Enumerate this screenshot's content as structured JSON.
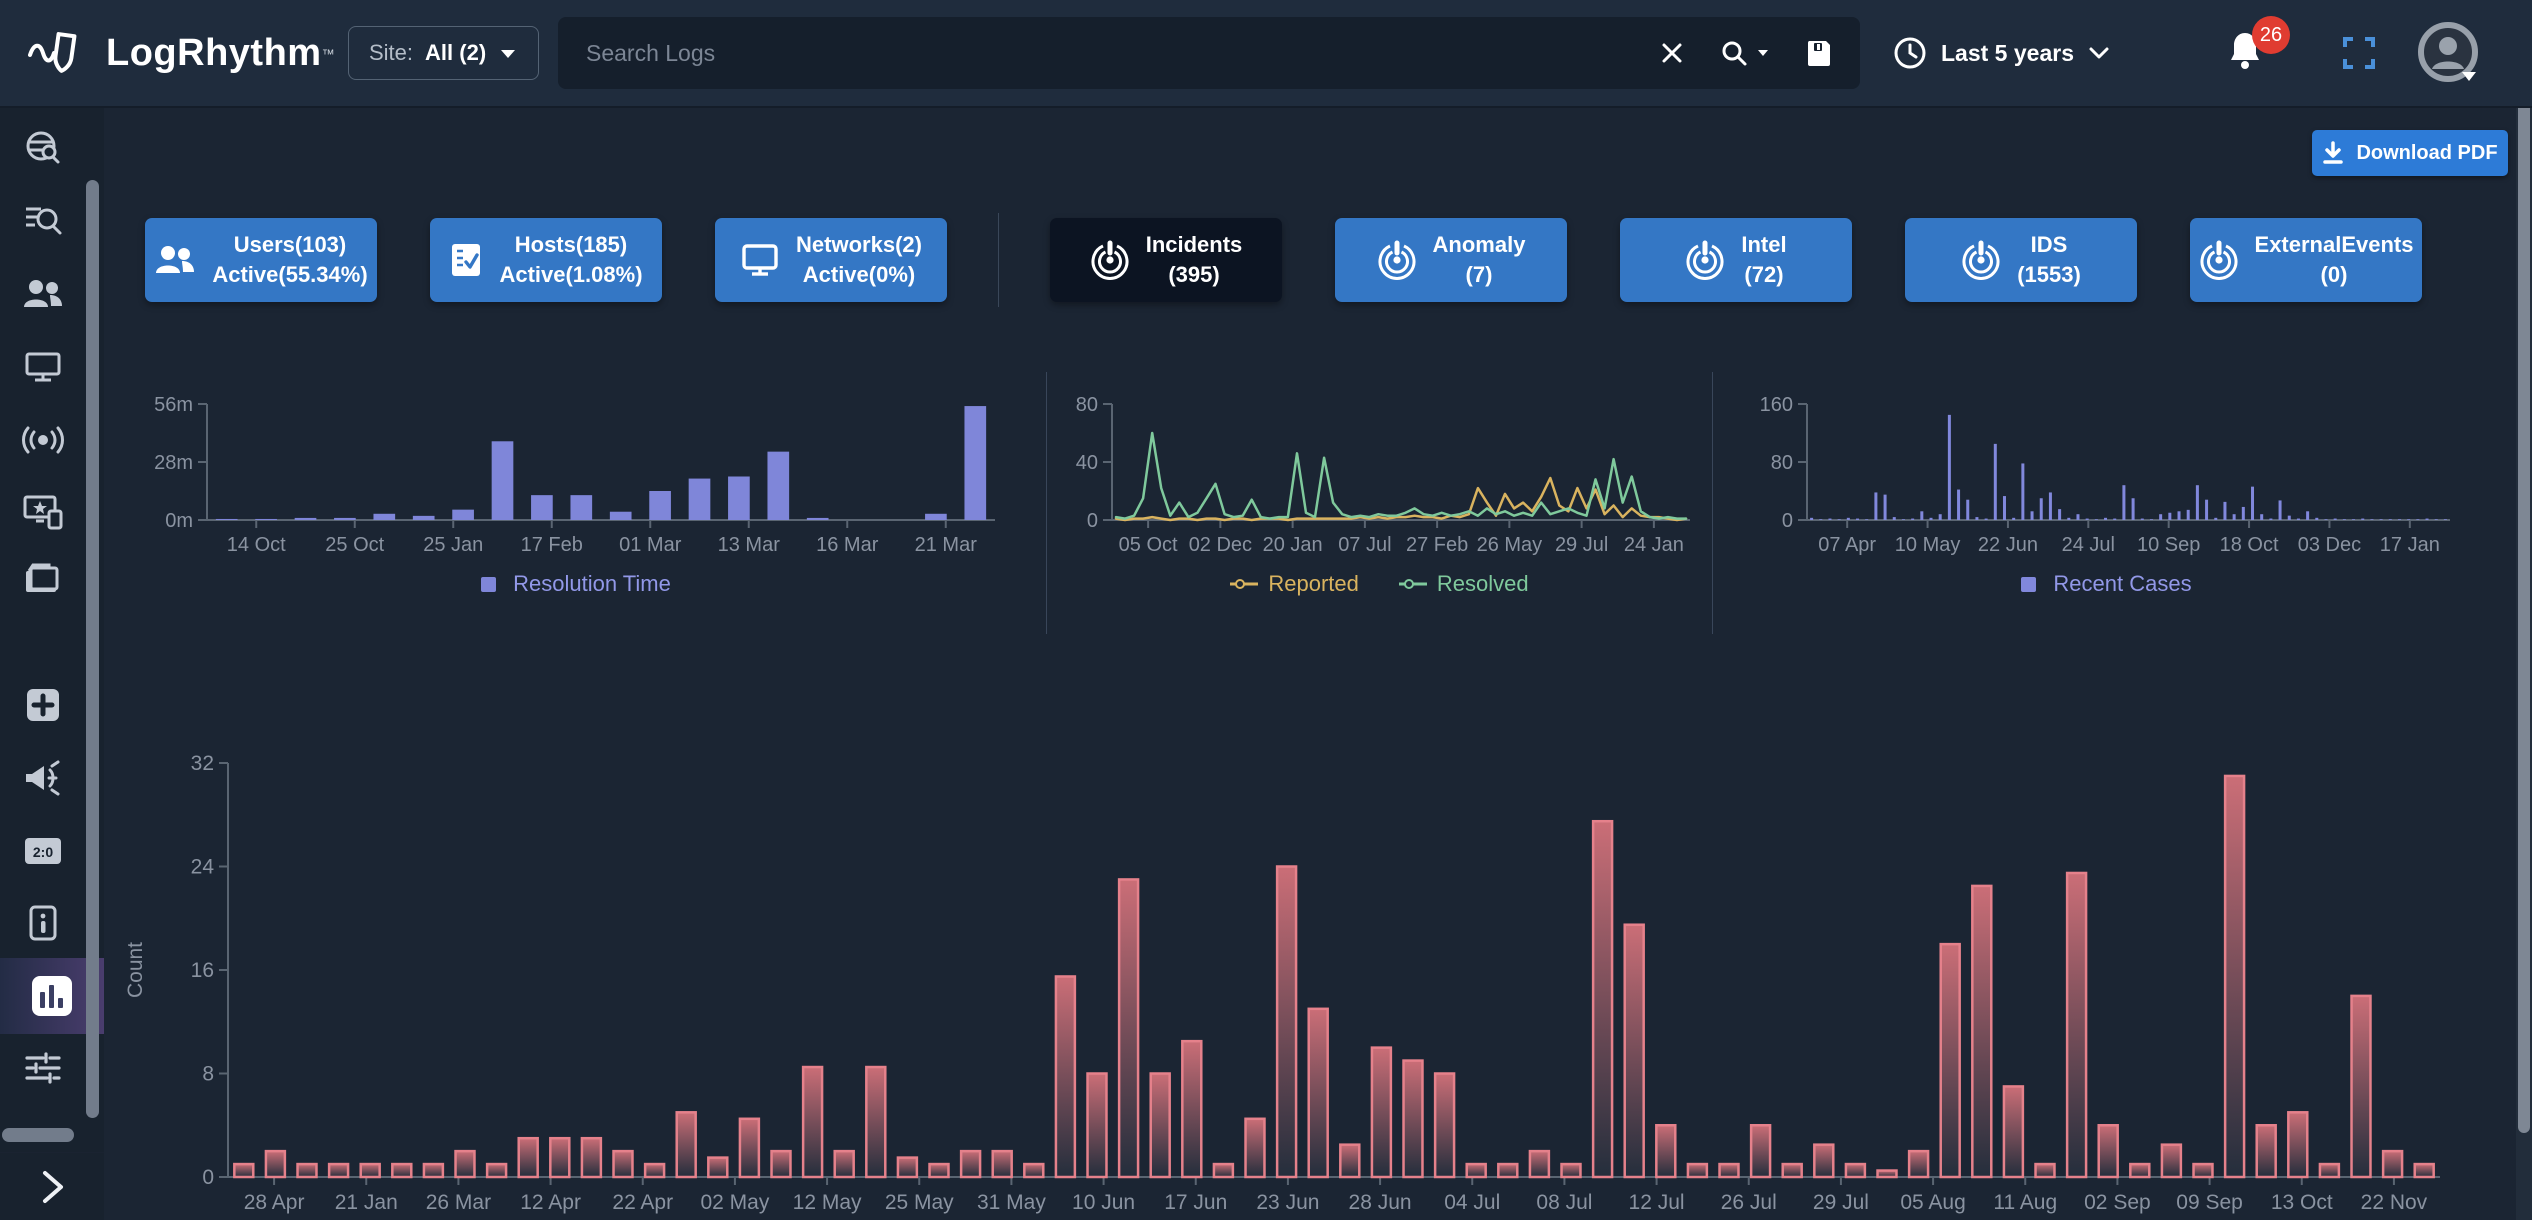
{
  "topbar": {
    "logo_text": "LogRhythm",
    "logo_tm": "™",
    "site_label": "Site:",
    "site_value": "All (2)",
    "search_placeholder": "Search Logs",
    "time_range": "Last 5 years",
    "notification_count": "26"
  },
  "sidebar": {
    "icons": [
      "globe-search",
      "search-list",
      "users",
      "monitor",
      "broadcast",
      "device-star",
      "briefcase",
      "plus-square",
      "megaphone",
      "scoreboard",
      "info-card",
      "bar-chart",
      "sliders",
      "expand-chevron"
    ],
    "active_item": "bar-chart"
  },
  "toolbar": {
    "download_pdf_label": "Download PDF"
  },
  "cards": {
    "assets": [
      {
        "title": "Users(103)",
        "subtitle": "Active(55.34%)",
        "icon": "users-icon"
      },
      {
        "title": "Hosts(185)",
        "subtitle": "Active(1.08%)",
        "icon": "host-checklist-icon"
      },
      {
        "title": "Networks(2)",
        "subtitle": "Active(0%)",
        "icon": "network-monitor-icon"
      }
    ],
    "events": [
      {
        "title": "Incidents",
        "subtitle": "(395)",
        "icon": "pulse-icon",
        "selected": true
      },
      {
        "title": "Anomaly",
        "subtitle": "(7)",
        "icon": "pulse-icon",
        "selected": false
      },
      {
        "title": "Intel",
        "subtitle": "(72)",
        "icon": "pulse-icon",
        "selected": false
      },
      {
        "title": "IDS",
        "subtitle": "(1553)",
        "icon": "pulse-icon",
        "selected": false
      },
      {
        "title": "ExternalEvents",
        "subtitle": "(0)",
        "icon": "pulse-icon",
        "selected": false
      }
    ]
  },
  "chart_data": [
    {
      "id": "resolution",
      "type": "bar",
      "title": "Resolution Time",
      "color": "#7f86d9",
      "ymax": 56,
      "y_ticks": [
        "0m",
        "28m",
        "56m"
      ],
      "x_labels": [
        "14 Oct",
        "25 Oct",
        "25 Jan",
        "17 Feb",
        "01 Mar",
        "13 Mar",
        "16 Mar",
        "21 Mar"
      ],
      "values": [
        0.5,
        0.5,
        1,
        1,
        3,
        2,
        5,
        38,
        12,
        12,
        4,
        14,
        20,
        21,
        33,
        1,
        0,
        0,
        3,
        55
      ],
      "unit": "minutes",
      "legend": [
        {
          "label": "Resolution Time",
          "color": "#7f86d9",
          "text_color": "#9298e8",
          "shape": "square"
        }
      ]
    },
    {
      "id": "incidents_over_time",
      "type": "line",
      "ymax": 80,
      "y_ticks": [
        "0",
        "40",
        "80"
      ],
      "x_labels": [
        "05 Oct",
        "02 Dec",
        "20 Jan",
        "07 Jul",
        "27 Feb",
        "26 May",
        "29 Jul",
        "24 Jan"
      ],
      "series": [
        {
          "name": "Reported",
          "color": "#d9b35f",
          "values": [
            1,
            0,
            1,
            1,
            2,
            1,
            0,
            1,
            1,
            0,
            1,
            1,
            0,
            1,
            1,
            0,
            1,
            1,
            1,
            0,
            1,
            1,
            1,
            1,
            1,
            1,
            1,
            2,
            1,
            2,
            1,
            2,
            2,
            3,
            2,
            2,
            1,
            3,
            2,
            4,
            22,
            12,
            3,
            18,
            8,
            12,
            6,
            16,
            29,
            10,
            6,
            22,
            8,
            21,
            4,
            10,
            2,
            8,
            3,
            2,
            2,
            1,
            0,
            1
          ]
        },
        {
          "name": "Resolved",
          "color": "#7fc99c",
          "values": [
            2,
            1,
            3,
            15,
            60,
            22,
            3,
            12,
            2,
            5,
            15,
            25,
            4,
            2,
            3,
            14,
            2,
            1,
            2,
            2,
            46,
            5,
            2,
            43,
            12,
            4,
            2,
            3,
            2,
            4,
            3,
            3,
            5,
            8,
            4,
            3,
            5,
            3,
            4,
            6,
            3,
            8,
            4,
            6,
            3,
            5,
            3,
            12,
            4,
            6,
            8,
            5,
            3,
            28,
            8,
            42,
            12,
            30,
            6,
            2,
            1,
            2,
            1,
            1
          ]
        }
      ],
      "legend": [
        {
          "label": "Reported",
          "color": "#d9b35f",
          "shape": "line"
        },
        {
          "label": "Resolved",
          "color": "#7fc99c",
          "shape": "line"
        }
      ]
    },
    {
      "id": "recent_cases",
      "type": "bar",
      "title": "Recent Cases",
      "color": "#8188dc",
      "ymax": 160,
      "y_ticks": [
        "0",
        "80",
        "160"
      ],
      "x_labels": [
        "07 Apr",
        "10 May",
        "22 Jun",
        "24 Jul",
        "10 Sep",
        "18 Oct",
        "03 Dec",
        "17 Jan"
      ],
      "values": [
        3,
        1,
        2,
        1,
        3,
        2,
        1,
        38,
        35,
        4,
        1,
        2,
        12,
        3,
        8,
        145,
        42,
        28,
        4,
        2,
        105,
        33,
        3,
        78,
        12,
        30,
        38,
        15,
        3,
        8,
        2,
        1,
        3,
        2,
        48,
        30,
        2,
        1,
        8,
        10,
        12,
        14,
        48,
        28,
        3,
        25,
        8,
        18,
        46,
        8,
        2,
        27,
        6,
        2,
        12,
        3,
        1,
        2,
        1,
        1,
        2,
        1,
        1,
        1,
        1,
        1,
        1,
        2,
        1,
        1
      ],
      "legend": [
        {
          "label": "Recent Cases",
          "color": "#8188dc",
          "text_color": "#9298e8",
          "shape": "square"
        }
      ]
    },
    {
      "id": "incident_count",
      "type": "bar",
      "ylabel": "Count",
      "ymax": 32,
      "gradient": true,
      "bar_fill_top": "#cb6e77",
      "bar_fill_bottom": "#242e3c",
      "stroke": "#e5818b",
      "y_ticks": [
        "0",
        "8",
        "16",
        "24",
        "32"
      ],
      "x_labels": [
        "28 Apr",
        "21 Jan",
        "26 Mar",
        "12 Apr",
        "22 Apr",
        "02 May",
        "12 May",
        "25 May",
        "31 May",
        "10 Jun",
        "17 Jun",
        "23 Jun",
        "28 Jun",
        "04 Jul",
        "08 Jul",
        "12 Jul",
        "26 Jul",
        "29 Jul",
        "05 Aug",
        "11 Aug",
        "02 Sep",
        "09 Sep",
        "13 Oct",
        "22 Nov"
      ],
      "values": [
        1,
        2,
        1,
        1,
        1,
        1,
        1,
        2,
        1,
        3,
        3,
        3,
        2,
        1,
        5,
        1.5,
        4.5,
        2,
        8.5,
        2,
        8.5,
        1.5,
        1,
        2,
        2,
        1,
        15.5,
        8,
        23,
        8,
        10.5,
        1,
        4.5,
        24,
        13,
        2.5,
        10,
        9,
        8,
        1,
        1,
        2,
        1,
        27.5,
        19.5,
        4,
        1,
        1,
        4,
        1,
        2.5,
        1,
        0.5,
        2,
        18,
        22.5,
        7,
        1,
        23.5,
        4,
        1,
        2.5,
        1,
        31,
        4,
        5,
        1,
        14,
        2,
        1
      ]
    }
  ]
}
